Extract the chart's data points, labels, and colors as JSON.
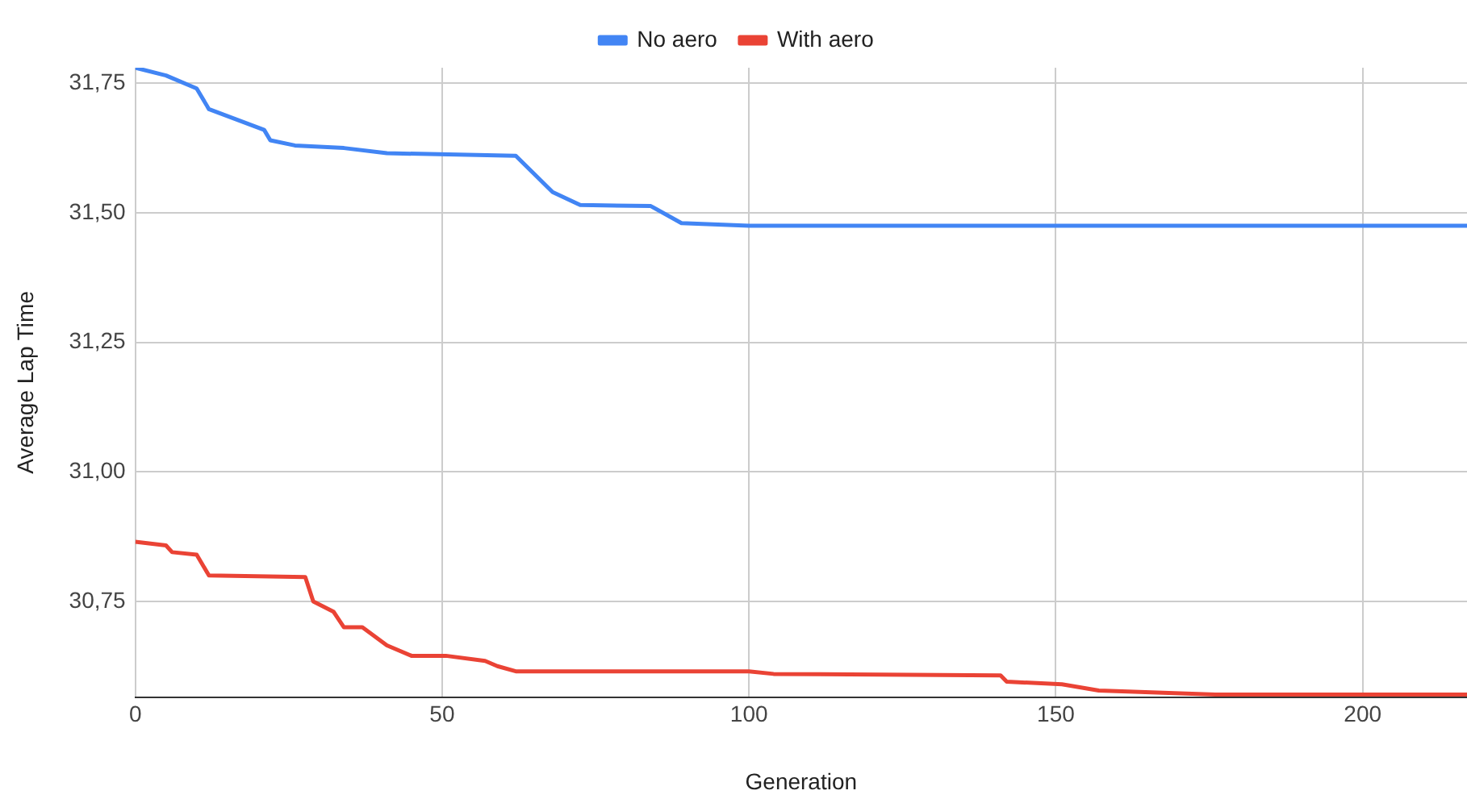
{
  "chart_data": {
    "type": "line",
    "xlabel": "Generation",
    "ylabel": "Average Lap Time",
    "xlim": [
      0,
      217
    ],
    "xticks": [
      0,
      50,
      100,
      150,
      200
    ],
    "ylim": [
      30.565,
      31.78
    ],
    "yticks": [
      {
        "value": 30.75,
        "label": "30,75"
      },
      {
        "value": 31,
        "label": "31,00"
      },
      {
        "value": 31.25,
        "label": "31,25"
      },
      {
        "value": 31.5,
        "label": "31,50"
      },
      {
        "value": 31.75,
        "label": "31,75"
      }
    ],
    "grid": true,
    "legend": "top",
    "marker": "none",
    "line_style": "solid",
    "series": [
      {
        "name": "No aero",
        "color": "#4285f4",
        "x": [
          0,
          5,
          10,
          12,
          21,
          22,
          26,
          34,
          41,
          62,
          68,
          72.5,
          84,
          89,
          100,
          217
        ],
        "values": [
          31.78,
          31.765,
          31.74,
          31.7,
          31.66,
          31.64,
          31.63,
          31.625,
          31.615,
          31.61,
          31.54,
          31.515,
          31.513,
          31.48,
          31.475,
          31.475
        ]
      },
      {
        "name": "With aero",
        "color": "#ea4335",
        "x": [
          0,
          5,
          6,
          10,
          12,
          27.7,
          29,
          32.3,
          34,
          37,
          41,
          45,
          50.6,
          57,
          59,
          62,
          100,
          104,
          141,
          142,
          151,
          157,
          176,
          217
        ],
        "values": [
          30.865,
          30.858,
          30.845,
          30.84,
          30.8,
          30.797,
          30.75,
          30.73,
          30.7,
          30.7,
          30.665,
          30.645,
          30.645,
          30.635,
          30.625,
          30.615,
          30.615,
          30.61,
          30.607,
          30.595,
          30.59,
          30.578,
          30.57,
          30.57
        ]
      }
    ]
  }
}
